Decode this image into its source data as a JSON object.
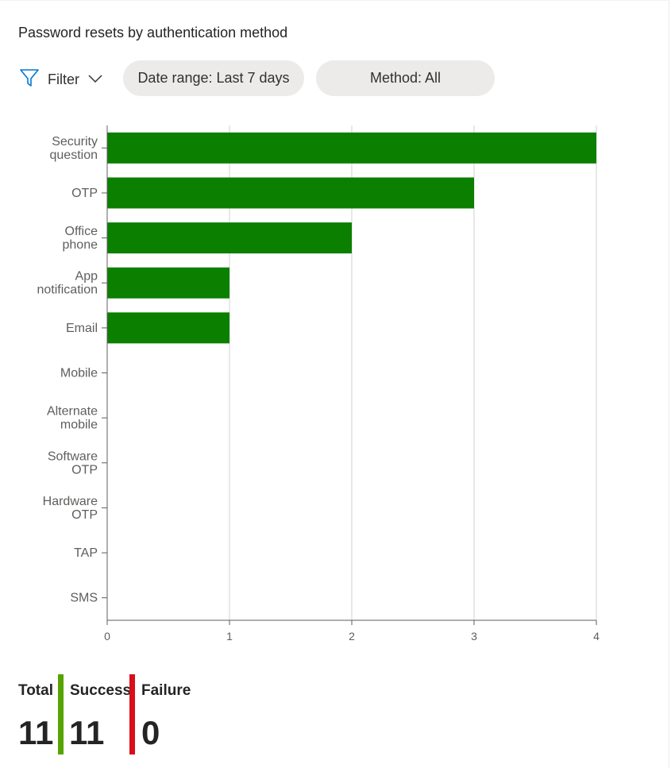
{
  "title": "Password resets by authentication method",
  "toolbar": {
    "filter_label": "Filter",
    "date_range_label": "Date range: Last 7 days",
    "method_label": "Method: All"
  },
  "colors": {
    "bar": "#0a7f00",
    "success": "#57a300",
    "failure": "#d80f1a",
    "accent": "#0078d4"
  },
  "chart_data": {
    "type": "bar",
    "orientation": "horizontal",
    "categories": [
      [
        "Security",
        "question"
      ],
      [
        "OTP"
      ],
      [
        "Office",
        "phone"
      ],
      [
        "App",
        "notification"
      ],
      [
        "Email"
      ],
      [
        "Mobile"
      ],
      [
        "Alternate",
        "mobile"
      ],
      [
        "Software",
        "OTP"
      ],
      [
        "Hardware",
        "OTP"
      ],
      [
        "TAP"
      ],
      [
        "SMS"
      ]
    ],
    "values": [
      4,
      3,
      2,
      1,
      1,
      0,
      0,
      0,
      0,
      0,
      0
    ],
    "xlim": [
      0,
      4
    ],
    "xticks": [
      "0",
      "1",
      "2",
      "3",
      "4"
    ],
    "grid": true
  },
  "stats": {
    "total_label": "Total",
    "total_value": "11",
    "success_label": "Success",
    "success_value": "11",
    "failure_label": "Failure",
    "failure_value": "0"
  }
}
